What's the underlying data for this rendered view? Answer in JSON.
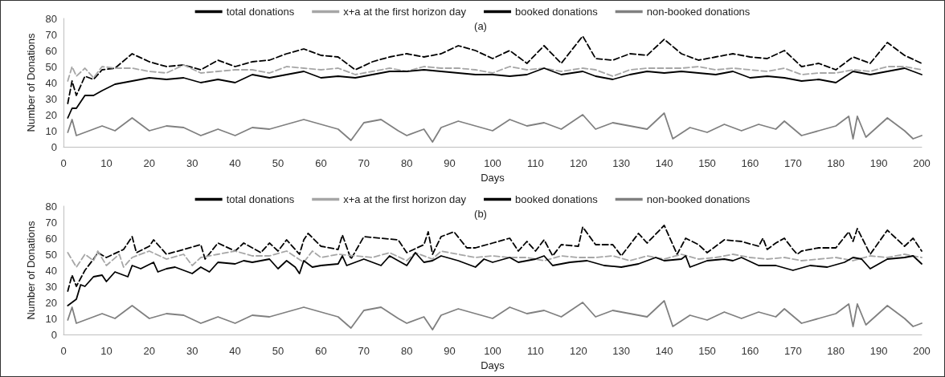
{
  "chart_data": [
    {
      "type": "line",
      "title": "(a)",
      "xlabel": "Days",
      "ylabel": "Number of Donations",
      "xlim": [
        0,
        200
      ],
      "xticks": [
        0,
        10,
        20,
        30,
        40,
        50,
        60,
        70,
        80,
        90,
        100,
        110,
        120,
        130,
        140,
        150,
        160,
        170,
        180,
        190,
        200
      ],
      "ylim": [
        0,
        80
      ],
      "yticks": [
        0,
        10,
        20,
        30,
        40,
        50,
        60,
        70,
        80
      ],
      "grid": false,
      "legend": "top",
      "marker": "none",
      "series": [
        {
          "name": "total donations",
          "color": "#000000",
          "line_style": "dashed",
          "x": [
            1,
            2,
            3,
            5,
            7,
            9,
            12,
            16,
            20,
            24,
            28,
            32,
            36,
            40,
            44,
            48,
            52,
            56,
            60,
            64,
            68,
            72,
            76,
            80,
            84,
            88,
            92,
            96,
            100,
            104,
            108,
            112,
            116,
            121,
            124,
            128,
            132,
            136,
            140,
            144,
            148,
            152,
            156,
            160,
            164,
            168,
            172,
            176,
            180,
            184,
            188,
            192,
            196,
            200
          ],
          "values": [
            27,
            41,
            32,
            44,
            42,
            48,
            49,
            58,
            53,
            50,
            51,
            48,
            54,
            50,
            53,
            54,
            58,
            61,
            57,
            56,
            48,
            53,
            56,
            58,
            56,
            58,
            63,
            60,
            55,
            60,
            52,
            63,
            52,
            69,
            55,
            54,
            58,
            57,
            67,
            58,
            54,
            56,
            58,
            56,
            55,
            60,
            50,
            52,
            48,
            56,
            52,
            65,
            57,
            52
          ]
        },
        {
          "name": "x+a at the first horizon day",
          "color": "#a6a6a6",
          "line_style": "dashed",
          "x": [
            1,
            2,
            3,
            5,
            7,
            9,
            12,
            16,
            20,
            24,
            28,
            32,
            36,
            40,
            44,
            48,
            52,
            56,
            60,
            64,
            68,
            72,
            76,
            80,
            84,
            88,
            92,
            96,
            100,
            104,
            108,
            112,
            116,
            121,
            124,
            128,
            132,
            136,
            140,
            144,
            148,
            152,
            156,
            160,
            164,
            168,
            172,
            176,
            180,
            184,
            188,
            192,
            196,
            200
          ],
          "values": [
            41,
            50,
            44,
            49,
            43,
            50,
            49,
            49,
            47,
            46,
            51,
            46,
            47,
            48,
            48,
            46,
            50,
            49,
            48,
            49,
            45,
            47,
            49,
            47,
            50,
            49,
            49,
            48,
            46,
            50,
            48,
            49,
            47,
            49,
            48,
            44,
            48,
            49,
            49,
            49,
            50,
            48,
            49,
            48,
            47,
            49,
            45,
            46,
            46,
            48,
            47,
            50,
            50,
            48
          ]
        },
        {
          "name": "booked donations",
          "color": "#000000",
          "line_style": "solid",
          "x": [
            1,
            2,
            3,
            5,
            7,
            9,
            12,
            16,
            20,
            24,
            28,
            32,
            36,
            40,
            44,
            48,
            52,
            56,
            60,
            64,
            68,
            72,
            76,
            80,
            84,
            88,
            92,
            96,
            100,
            104,
            108,
            112,
            116,
            121,
            124,
            128,
            132,
            136,
            140,
            144,
            148,
            152,
            156,
            160,
            164,
            168,
            172,
            176,
            180,
            184,
            188,
            192,
            196,
            200
          ],
          "values": [
            18,
            24,
            24,
            32,
            32,
            35,
            39,
            41,
            43,
            42,
            43,
            40,
            42,
            40,
            45,
            43,
            45,
            47,
            43,
            44,
            43,
            45,
            47,
            47,
            48,
            47,
            46,
            45,
            45,
            44,
            45,
            49,
            45,
            47,
            44,
            42,
            45,
            47,
            46,
            47,
            46,
            45,
            47,
            43,
            44,
            43,
            41,
            42,
            40,
            47,
            45,
            47,
            49,
            45
          ]
        },
        {
          "name": "non-booked donations",
          "color": "#808080",
          "line_style": "solid",
          "x": [
            1,
            2,
            3,
            5,
            7,
            9,
            12,
            16,
            20,
            24,
            28,
            32,
            36,
            40,
            44,
            48,
            52,
            56,
            60,
            64,
            67,
            70,
            74,
            78,
            80,
            84,
            86,
            88,
            92,
            96,
            100,
            104,
            108,
            112,
            116,
            121,
            124,
            128,
            132,
            136,
            140,
            142,
            146,
            150,
            154,
            158,
            162,
            166,
            168,
            172,
            176,
            180,
            183,
            184,
            185,
            187,
            192,
            196,
            198,
            200
          ],
          "values": [
            9,
            17,
            7,
            9,
            11,
            13,
            10,
            18,
            10,
            13,
            12,
            7,
            11,
            7,
            12,
            11,
            14,
            17,
            14,
            11,
            4,
            15,
            17,
            10,
            7,
            11,
            3,
            12,
            16,
            13,
            10,
            17,
            13,
            15,
            11,
            20,
            11,
            15,
            13,
            11,
            21,
            5,
            12,
            9,
            14,
            10,
            14,
            11,
            16,
            7,
            10,
            13,
            19,
            5,
            19,
            6,
            18,
            10,
            5,
            7
          ]
        }
      ]
    },
    {
      "type": "line",
      "title": "(b)",
      "xlabel": "Days",
      "ylabel": "Number of Donations",
      "xlim": [
        0,
        200
      ],
      "xticks": [
        0,
        10,
        20,
        30,
        40,
        50,
        60,
        70,
        80,
        90,
        100,
        110,
        120,
        130,
        140,
        150,
        160,
        170,
        180,
        190,
        200
      ],
      "ylim": [
        0,
        80
      ],
      "yticks": [
        0,
        10,
        20,
        30,
        40,
        50,
        60,
        70,
        80
      ],
      "grid": false,
      "legend": "top",
      "marker": "none",
      "series": [
        {
          "name": "total donations",
          "color": "#000000",
          "line_style": "dashed",
          "x": [
            1,
            2,
            3,
            5,
            7,
            8,
            10,
            14,
            16,
            17,
            20,
            21,
            24,
            28,
            32,
            33,
            36,
            40,
            42,
            46,
            48,
            50,
            52,
            55,
            56,
            57,
            60,
            64,
            65,
            67,
            70,
            74,
            78,
            80,
            84,
            85,
            86,
            88,
            91,
            94,
            96,
            100,
            104,
            106,
            108,
            110,
            112,
            114,
            116,
            120,
            121,
            124,
            128,
            130,
            134,
            136,
            140,
            143,
            145,
            148,
            150,
            152,
            154,
            158,
            162,
            163,
            164,
            166,
            168,
            170,
            171,
            172,
            176,
            180,
            183,
            184,
            185,
            188,
            192,
            196,
            198,
            200
          ],
          "values": [
            27,
            37,
            30,
            40,
            47,
            51,
            48,
            53,
            61,
            51,
            55,
            59,
            50,
            53,
            56,
            47,
            57,
            52,
            57,
            51,
            57,
            52,
            59,
            50,
            59,
            63,
            55,
            53,
            62,
            47,
            61,
            60,
            59,
            51,
            56,
            64,
            50,
            61,
            64,
            54,
            54,
            57,
            60,
            52,
            58,
            52,
            59,
            49,
            56,
            55,
            67,
            56,
            56,
            49,
            63,
            57,
            68,
            50,
            60,
            56,
            51,
            55,
            59,
            58,
            55,
            60,
            53,
            57,
            60,
            53,
            50,
            52,
            54,
            54,
            64,
            58,
            66,
            50,
            65,
            55,
            60,
            52
          ]
        },
        {
          "name": "x+a at the first horizon day",
          "color": "#a6a6a6",
          "line_style": "dashed",
          "x": [
            1,
            3,
            5,
            7,
            8,
            10,
            13,
            14,
            16,
            20,
            24,
            28,
            30,
            32,
            36,
            40,
            44,
            48,
            52,
            56,
            58,
            60,
            64,
            68,
            72,
            76,
            80,
            82,
            86,
            88,
            92,
            96,
            100,
            104,
            108,
            112,
            116,
            120,
            124,
            128,
            132,
            136,
            140,
            144,
            148,
            152,
            156,
            160,
            164,
            168,
            172,
            176,
            180,
            184,
            188,
            192,
            196,
            200
          ],
          "values": [
            51,
            42,
            50,
            46,
            52,
            43,
            50,
            42,
            48,
            52,
            47,
            50,
            43,
            48,
            50,
            52,
            49,
            49,
            52,
            45,
            52,
            48,
            50,
            49,
            48,
            51,
            46,
            51,
            47,
            52,
            50,
            48,
            49,
            48,
            48,
            46,
            49,
            48,
            48,
            49,
            46,
            49,
            47,
            50,
            47,
            48,
            50,
            48,
            47,
            48,
            46,
            47,
            48,
            46,
            49,
            48,
            50,
            48
          ]
        },
        {
          "name": "booked donations",
          "color": "#000000",
          "line_style": "solid",
          "x": [
            1,
            3,
            4,
            5,
            7,
            9,
            10,
            12,
            15,
            16,
            18,
            21,
            22,
            24,
            26,
            28,
            30,
            32,
            34,
            36,
            40,
            42,
            44,
            48,
            50,
            52,
            54,
            55,
            56,
            58,
            60,
            64,
            65,
            66,
            70,
            72,
            74,
            76,
            80,
            82,
            84,
            86,
            88,
            92,
            96,
            98,
            100,
            104,
            106,
            110,
            112,
            114,
            118,
            122,
            126,
            130,
            134,
            138,
            140,
            144,
            145,
            146,
            150,
            154,
            156,
            158,
            162,
            166,
            170,
            174,
            178,
            182,
            184,
            186,
            188,
            192,
            196,
            198,
            200
          ],
          "values": [
            18,
            22,
            31,
            30,
            36,
            37,
            33,
            39,
            36,
            43,
            41,
            45,
            39,
            41,
            42,
            40,
            38,
            42,
            39,
            45,
            44,
            46,
            45,
            47,
            41,
            46,
            42,
            38,
            46,
            42,
            43,
            44,
            49,
            43,
            47,
            45,
            43,
            49,
            43,
            51,
            45,
            46,
            49,
            46,
            42,
            47,
            45,
            48,
            45,
            47,
            49,
            43,
            45,
            46,
            43,
            42,
            44,
            48,
            46,
            47,
            49,
            42,
            46,
            47,
            46,
            48,
            43,
            43,
            40,
            43,
            42,
            45,
            48,
            47,
            41,
            47,
            48,
            49,
            44
          ]
        },
        {
          "name": "non-booked donations",
          "color": "#808080",
          "line_style": "solid",
          "x": [
            1,
            2,
            3,
            5,
            7,
            9,
            12,
            16,
            20,
            24,
            28,
            32,
            36,
            40,
            44,
            48,
            52,
            56,
            60,
            64,
            67,
            70,
            74,
            78,
            80,
            84,
            86,
            88,
            92,
            96,
            100,
            104,
            108,
            112,
            116,
            121,
            124,
            128,
            132,
            136,
            140,
            142,
            146,
            150,
            154,
            158,
            162,
            166,
            168,
            172,
            176,
            180,
            183,
            184,
            185,
            187,
            192,
            196,
            198,
            200
          ],
          "values": [
            9,
            17,
            7,
            9,
            11,
            13,
            10,
            18,
            10,
            13,
            12,
            7,
            11,
            7,
            12,
            11,
            14,
            17,
            14,
            11,
            4,
            15,
            17,
            10,
            7,
            11,
            3,
            12,
            16,
            13,
            10,
            17,
            13,
            15,
            11,
            20,
            11,
            15,
            13,
            11,
            21,
            5,
            12,
            9,
            14,
            10,
            14,
            11,
            16,
            7,
            10,
            13,
            19,
            5,
            19,
            6,
            18,
            10,
            5,
            7
          ]
        }
      ]
    }
  ]
}
